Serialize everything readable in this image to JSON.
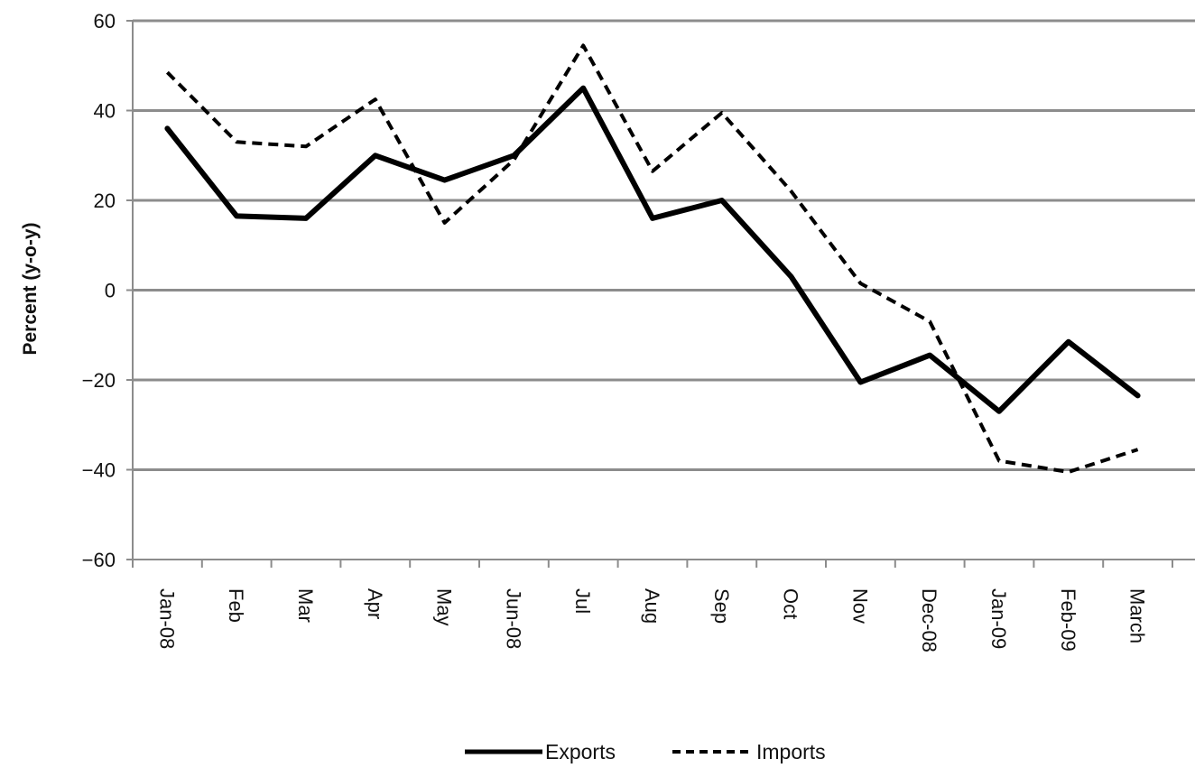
{
  "chart_data": {
    "type": "line",
    "title": "",
    "xlabel": "",
    "ylabel": "Percent (y-o-y)",
    "ylim": [
      -60,
      60
    ],
    "yticks": [
      60,
      40,
      20,
      0,
      -20,
      -40,
      -60
    ],
    "ytick_labels": [
      "60",
      "40",
      "20",
      "0",
      "−20",
      "−40",
      "−60"
    ],
    "grid": true,
    "legend_position": "bottom",
    "categories": [
      "Jan-08",
      "Feb",
      "Mar",
      "Apr",
      "May",
      "Jun-08",
      "Jul",
      "Aug",
      "Sep",
      "Oct",
      "Nov",
      "Dec-08",
      "Jan-09",
      "Feb-09",
      "March"
    ],
    "series": [
      {
        "name": "Exports",
        "style": "solid",
        "color": "#000000",
        "values": [
          36,
          16.5,
          16,
          30,
          24.5,
          30,
          45,
          16,
          20,
          3,
          -20.5,
          -14.5,
          -27,
          -11.5,
          -23.5
        ]
      },
      {
        "name": "Imports",
        "style": "dashed",
        "color": "#000000",
        "values": [
          48.5,
          33,
          32,
          42.5,
          15,
          29,
          54.5,
          26.5,
          39.5,
          22,
          1.5,
          -7,
          -38,
          -40.5,
          -35.5
        ]
      }
    ]
  }
}
